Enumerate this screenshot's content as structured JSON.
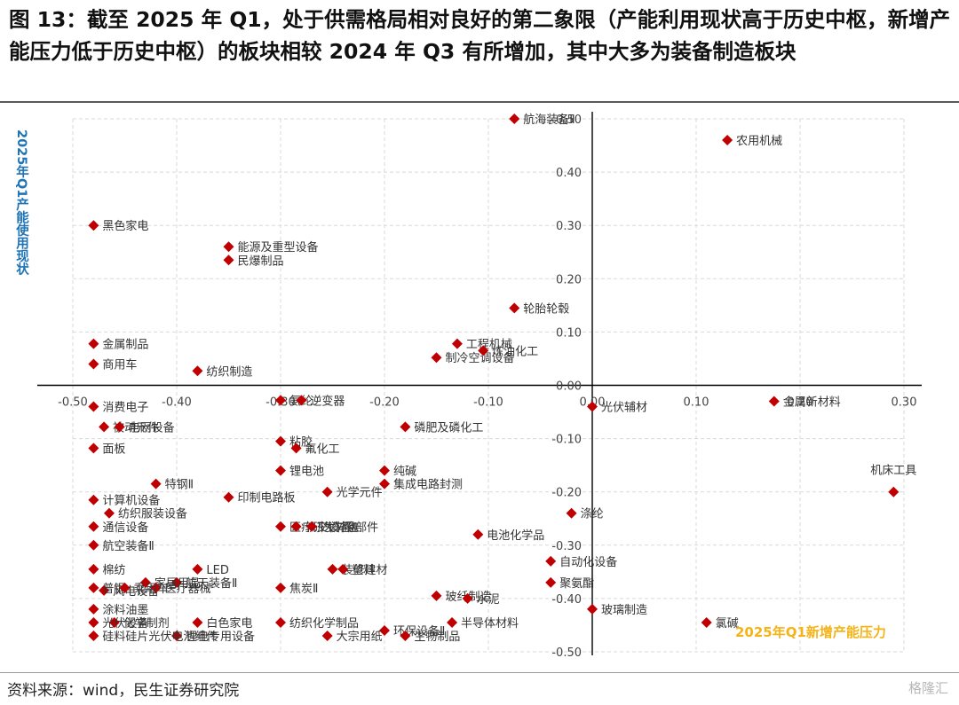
{
  "title": "图 13：截至 2025 年 Q1，处于供需格局相对良好的第二象限（产能利用现状高于历史中枢，新增产能压力低于历史中枢）的板块相较 2024 年 Q3 有所增加，其中大多为装备制造板块",
  "source": "资料来源：wind，民生证券研究院",
  "watermark": "格隆汇",
  "chart_data": {
    "type": "scatter",
    "xlabel": "2025年Q1新增产能压力",
    "ylabel": "2025年Q1产能使用现状",
    "xlim": [
      -0.5,
      0.3
    ],
    "ylim": [
      -0.5,
      0.5
    ],
    "x_ticks": [
      "-0.50",
      "-0.40",
      "-0.30",
      "-0.20",
      "-0.10",
      "0.00",
      "0.10",
      "0.20",
      "0.30"
    ],
    "y_ticks": [
      "0.50",
      "0.40",
      "0.30",
      "0.20",
      "0.10",
      "0.00",
      "-0.10",
      "-0.20",
      "-0.30",
      "-0.40",
      "-0.50"
    ],
    "grid": true,
    "marker_color": "#c00000",
    "xtitle_color": "#f5b316",
    "ytitle_color": "#1f74b5",
    "points": [
      {
        "label": "航海装备Ⅱ",
        "x": -0.075,
        "y": 0.5
      },
      {
        "label": "农用机械",
        "x": 0.13,
        "y": 0.46
      },
      {
        "label": "黑色家电",
        "x": -0.48,
        "y": 0.3
      },
      {
        "label": "能源及重型设备",
        "x": -0.35,
        "y": 0.26
      },
      {
        "label": "民爆制品",
        "x": -0.35,
        "y": 0.235
      },
      {
        "label": "轮胎轮毂",
        "x": -0.075,
        "y": 0.145
      },
      {
        "label": "金属制品",
        "x": -0.48,
        "y": 0.078
      },
      {
        "label": "工程机械",
        "x": -0.13,
        "y": 0.078
      },
      {
        "label": "制冷空调设备",
        "x": -0.15,
        "y": 0.052
      },
      {
        "label": "炼油化工",
        "x": -0.105,
        "y": 0.065
      },
      {
        "label": "商用车",
        "x": -0.48,
        "y": 0.04
      },
      {
        "label": "纺织制造",
        "x": -0.38,
        "y": 0.027
      },
      {
        "label": "消费电子",
        "x": -0.48,
        "y": -0.04
      },
      {
        "label": "氨纶",
        "x": -0.3,
        "y": -0.028
      },
      {
        "label": "逆变器",
        "x": -0.28,
        "y": -0.028
      },
      {
        "label": "磷肥及磷化工",
        "x": -0.18,
        "y": -0.078
      },
      {
        "label": "光伏辅材",
        "x": 0.0,
        "y": -0.04
      },
      {
        "label": "金属新材料",
        "x": 0.175,
        "y": -0.03
      },
      {
        "label": "被动元件",
        "x": -0.47,
        "y": -0.078
      },
      {
        "label": "电网设备",
        "x": -0.455,
        "y": -0.078
      },
      {
        "label": "粘胶",
        "x": -0.3,
        "y": -0.105
      },
      {
        "label": "氟化工",
        "x": -0.285,
        "y": -0.118
      },
      {
        "label": "面板",
        "x": -0.48,
        "y": -0.118
      },
      {
        "label": "纯碱",
        "x": -0.2,
        "y": -0.16
      },
      {
        "label": "光学元件",
        "x": -0.255,
        "y": -0.2
      },
      {
        "label": "锂电池",
        "x": -0.3,
        "y": -0.16
      },
      {
        "label": "特钢Ⅱ",
        "x": -0.42,
        "y": -0.185
      },
      {
        "label": "集成电路封测",
        "x": -0.2,
        "y": -0.185
      },
      {
        "label": "机床工具",
        "x": 0.29,
        "y": -0.2
      },
      {
        "label": "涤纶",
        "x": -0.02,
        "y": -0.24
      },
      {
        "label": "计算机设备",
        "x": -0.48,
        "y": -0.215
      },
      {
        "label": "印制电路板",
        "x": -0.35,
        "y": -0.21
      },
      {
        "label": "纺织服装设备",
        "x": -0.465,
        "y": -0.24
      },
      {
        "label": "医疗研发外包",
        "x": -0.3,
        "y": -0.265
      },
      {
        "label": "轨交设备Ⅱ",
        "x": -0.285,
        "y": -0.265
      },
      {
        "label": "汽车零部件",
        "x": -0.27,
        "y": -0.265
      },
      {
        "label": "电池化学品",
        "x": -0.11,
        "y": -0.28
      },
      {
        "label": "通信设备",
        "x": -0.48,
        "y": -0.265
      },
      {
        "label": "航空装备Ⅱ",
        "x": -0.48,
        "y": -0.3
      },
      {
        "label": "LED",
        "x": -0.38,
        "y": -0.345
      },
      {
        "label": "装修建材",
        "x": -0.25,
        "y": -0.345
      },
      {
        "label": "塑料",
        "x": -0.24,
        "y": -0.345
      },
      {
        "label": "自动化设备",
        "x": -0.04,
        "y": -0.33
      },
      {
        "label": "棉纺",
        "x": -0.48,
        "y": -0.345
      },
      {
        "label": "风电设备",
        "x": -0.47,
        "y": -0.385
      },
      {
        "label": "航天装备Ⅱ",
        "x": -0.4,
        "y": -0.37
      },
      {
        "label": "家居用品",
        "x": -0.43,
        "y": -0.37
      },
      {
        "label": "医疗器械",
        "x": -0.42,
        "y": -0.38
      },
      {
        "label": "焦炭Ⅱ",
        "x": -0.3,
        "y": -0.38
      },
      {
        "label": "玻纤制造",
        "x": -0.15,
        "y": -0.395
      },
      {
        "label": "聚氨酯",
        "x": -0.04,
        "y": -0.37
      },
      {
        "label": "普钢",
        "x": -0.48,
        "y": -0.38
      },
      {
        "label": "乘用车",
        "x": -0.45,
        "y": -0.38
      },
      {
        "label": "涂料油墨",
        "x": -0.48,
        "y": -0.42
      },
      {
        "label": "白色家电",
        "x": -0.38,
        "y": -0.445
      },
      {
        "label": "环保设备Ⅱ",
        "x": -0.2,
        "y": -0.46
      },
      {
        "label": "半导体材料",
        "x": -0.135,
        "y": -0.445
      },
      {
        "label": "玻璃制造",
        "x": 0.0,
        "y": -0.42
      },
      {
        "label": "氯碱",
        "x": 0.11,
        "y": -0.445
      },
      {
        "label": "化学制剂",
        "x": -0.46,
        "y": -0.445
      },
      {
        "label": "光伏设备",
        "x": -0.48,
        "y": -0.445
      },
      {
        "label": "大宗用纸",
        "x": -0.255,
        "y": -0.47
      },
      {
        "label": "生物制品",
        "x": -0.18,
        "y": -0.47
      },
      {
        "label": "水泥",
        "x": -0.12,
        "y": -0.4
      },
      {
        "label": "锂电专用设备",
        "x": -0.4,
        "y": -0.47
      },
      {
        "label": "纺织化学制品",
        "x": -0.3,
        "y": -0.445
      },
      {
        "label": "硅料硅片光伏电池组件",
        "x": -0.48,
        "y": -0.47
      }
    ]
  }
}
